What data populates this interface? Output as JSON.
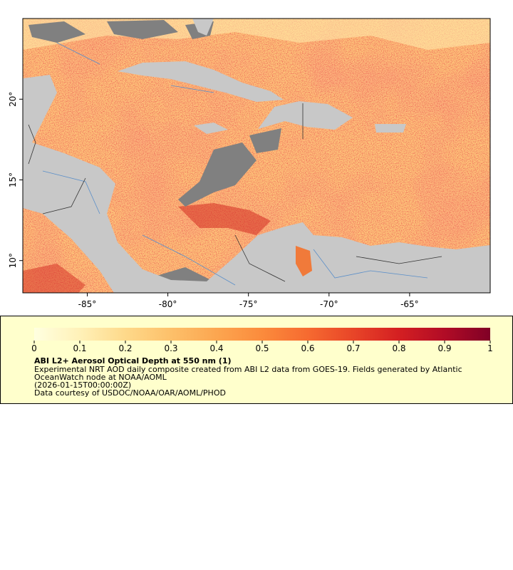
{
  "map": {
    "xlim": [
      -89,
      -60
    ],
    "ylim": [
      8,
      25
    ],
    "xticks": [
      {
        "value": -85,
        "label": "-85°"
      },
      {
        "value": -80,
        "label": "-80°"
      },
      {
        "value": -75,
        "label": "-75°"
      },
      {
        "value": -70,
        "label": "-70°"
      },
      {
        "value": -65,
        "label": "-65°"
      }
    ],
    "yticks": [
      {
        "value": 10,
        "label": "10°"
      },
      {
        "value": 15,
        "label": "15°"
      },
      {
        "value": 20,
        "label": "20°"
      }
    ]
  },
  "legend": {
    "range": [
      0,
      1
    ],
    "ticks": [
      0,
      0.1,
      0.2,
      0.3,
      0.4,
      0.5,
      0.6,
      0.7,
      0.8,
      0.9,
      1
    ],
    "palette": [
      "#ffffe0",
      "#fff1b8",
      "#fed98a",
      "#fdc06a",
      "#fca650",
      "#fb8b3c",
      "#f66a30",
      "#e84528",
      "#d41f22",
      "#b10c26",
      "#800026"
    ],
    "title": "ABI L2+ Aerosol Optical Depth at 550 nm (1)",
    "lines": [
      "Experimental NRT AOD daily composite created from ABI L2 data from GOES-19. Fields generated by Atlantic",
      "OceanWatch node at NOAA/AOML",
      "(2026-01-15T00:00:00Z)",
      "Data courtesy of USDOC/NOAA/OAR/AOML/PHOD"
    ]
  }
}
